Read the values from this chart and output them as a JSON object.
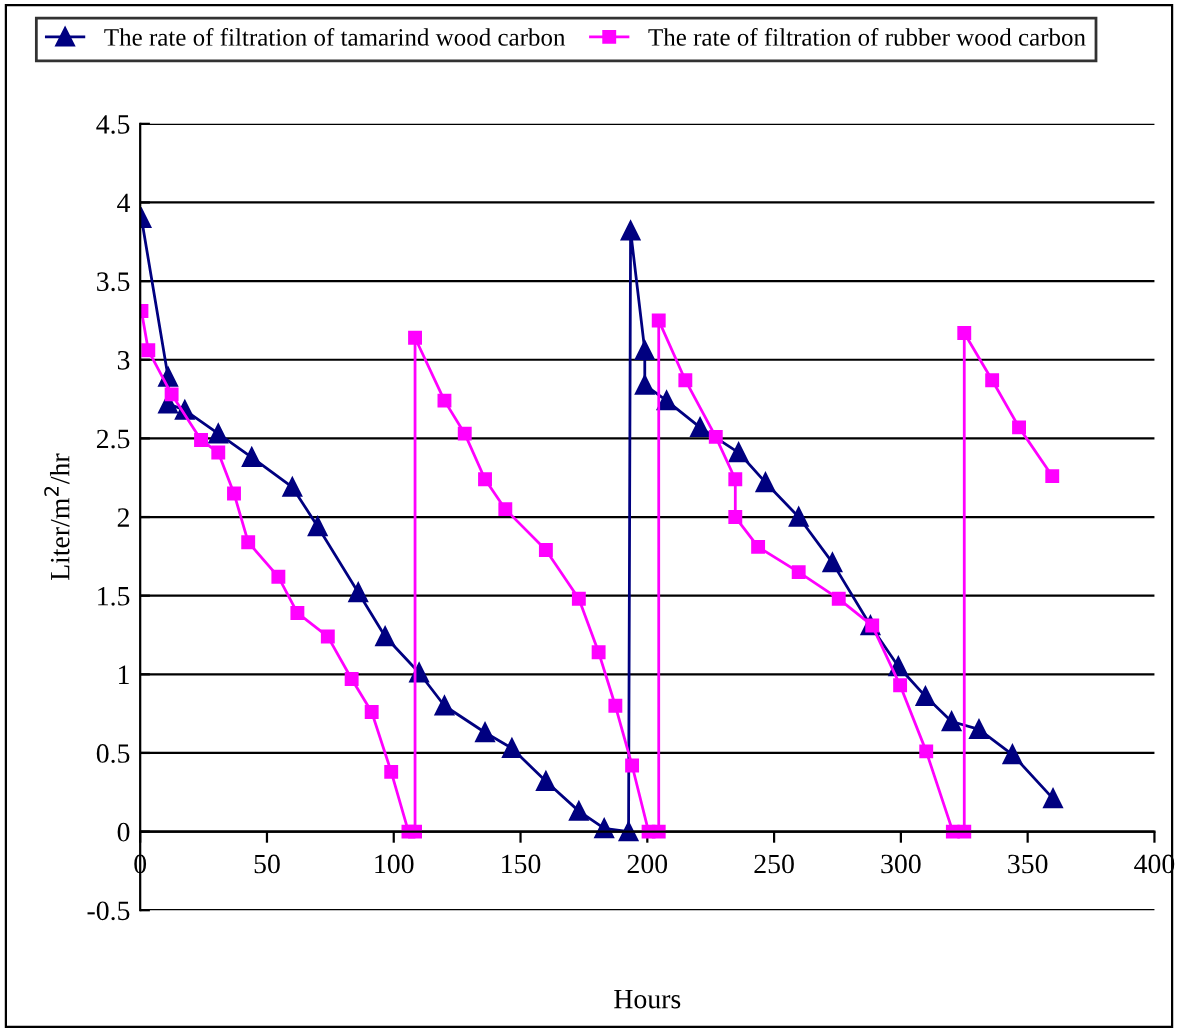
{
  "chart_data": {
    "type": "line",
    "xlabel": "Hours",
    "ylabel": "Liter/m$^{2}$/hr",
    "xlim": [
      0,
      400
    ],
    "ylim": [
      -0.5,
      4.5
    ],
    "xticks": [
      0,
      50,
      100,
      150,
      200,
      250,
      300,
      350,
      400
    ],
    "yticks": [
      -0.5,
      0,
      0.5,
      1,
      1.5,
      2,
      2.5,
      3,
      3.5,
      4,
      4.5
    ],
    "grid": "y",
    "legend": "top",
    "series": [
      {
        "name": "The rate of filtration of tamarind wood carbon",
        "color": "#000080",
        "marker": "triangle",
        "x": [
          0.5,
          11,
          11,
          17.6,
          30.8,
          44,
          60,
          70,
          86,
          96.6,
          110,
          120,
          136,
          146.6,
          160,
          173,
          183,
          192.6,
          193.4,
          199,
          199,
          207.6,
          220.8,
          236,
          246.6,
          259.7,
          273,
          288,
          299,
          309.7,
          320,
          330.8,
          344,
          360
        ],
        "values": [
          3.9,
          2.89,
          2.72,
          2.68,
          2.53,
          2.38,
          2.19,
          1.94,
          1.52,
          1.24,
          1.01,
          0.8,
          0.63,
          0.53,
          0.32,
          0.13,
          0.02,
          0,
          3.82,
          3.06,
          2.84,
          2.74,
          2.57,
          2.41,
          2.22,
          2.0,
          1.71,
          1.31,
          1.05,
          0.86,
          0.7,
          0.65,
          0.49,
          0.21
        ]
      },
      {
        "name": "The rate of filtration of rubber wood carbon",
        "color": "#ff00ff",
        "marker": "square",
        "x": [
          0.5,
          3.2,
          12.4,
          24,
          30.8,
          37,
          42.6,
          54.5,
          62,
          74,
          83.4,
          91.3,
          99,
          105.8,
          108.4,
          108.4,
          120,
          128,
          136,
          144,
          160,
          173,
          180.8,
          187.4,
          194,
          200.5,
          204.5,
          204.5,
          215,
          227,
          234.7,
          234.7,
          243.7,
          259.7,
          275.5,
          288.7,
          299.7,
          310,
          320.5,
          325,
          325,
          336,
          346.6,
          359.7
        ],
        "values": [
          3.31,
          3.06,
          2.78,
          2.49,
          2.41,
          2.15,
          1.84,
          1.62,
          1.39,
          1.24,
          0.97,
          0.76,
          0.38,
          0,
          0,
          3.14,
          2.74,
          2.53,
          2.24,
          2.05,
          1.79,
          1.48,
          1.14,
          0.8,
          0.42,
          0,
          0,
          3.25,
          2.87,
          2.51,
          2.24,
          2.0,
          1.81,
          1.65,
          1.48,
          1.31,
          0.93,
          0.51,
          0,
          0,
          3.17,
          2.87,
          2.57,
          2.26
        ]
      }
    ]
  }
}
